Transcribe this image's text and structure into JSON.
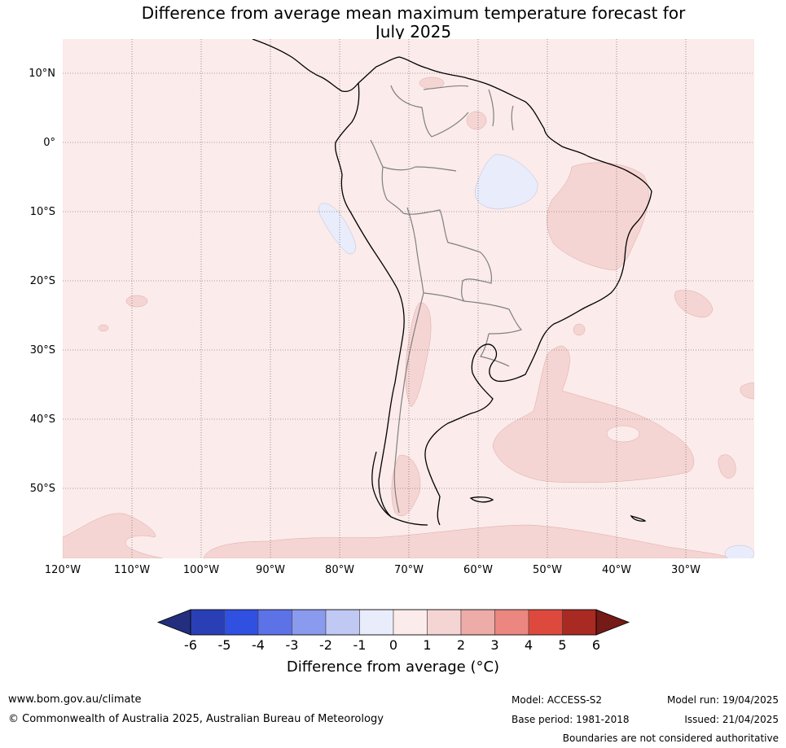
{
  "title": {
    "line1": "Difference from average mean maximum temperature forecast for",
    "line2": "July 2025"
  },
  "map": {
    "lat_labels": [
      "10°N",
      "0°",
      "10°S",
      "20°S",
      "30°S",
      "40°S",
      "50°S"
    ],
    "lon_labels": [
      "120°W",
      "110°W",
      "100°W",
      "90°W",
      "80°W",
      "70°W",
      "60°W",
      "50°W",
      "40°W",
      "30°W"
    ],
    "background_anomaly_class": "0 to 1",
    "colors": {
      "anomaly_0_1": "#fbebea",
      "anomaly_1_2": "#f5d5d3",
      "anomaly_m1_0": "#e9ecfb",
      "coast": "#000000",
      "borders": "#808080",
      "grid": "#555555"
    }
  },
  "colorbar": {
    "ticks": [
      "-6",
      "-5",
      "-4",
      "-3",
      "-2",
      "-1",
      "0",
      "1",
      "2",
      "3",
      "4",
      "5",
      "6"
    ],
    "colors": [
      "#232e7e",
      "#2a3fb6",
      "#3050e2",
      "#5d72e6",
      "#8a9aee",
      "#c0c8f4",
      "#e9ecfb",
      "#fbebea",
      "#f5d5d3",
      "#eeaca8",
      "#eb8680",
      "#dd4a3d",
      "#a82a22",
      "#741a17"
    ],
    "label": "Difference from average (°C)"
  },
  "footer": {
    "url": "www.bom.gov.au/climate",
    "copyright": "© Commonwealth of Australia 2025, Australian Bureau of Meteorology",
    "model": "Model: ACCESS-S2",
    "base_period": "Base period: 1981-2018",
    "model_run": "Model run: 19/04/2025",
    "issued": "Issued: 21/04/2025",
    "disclaimer": "Boundaries are not considered authoritative"
  }
}
